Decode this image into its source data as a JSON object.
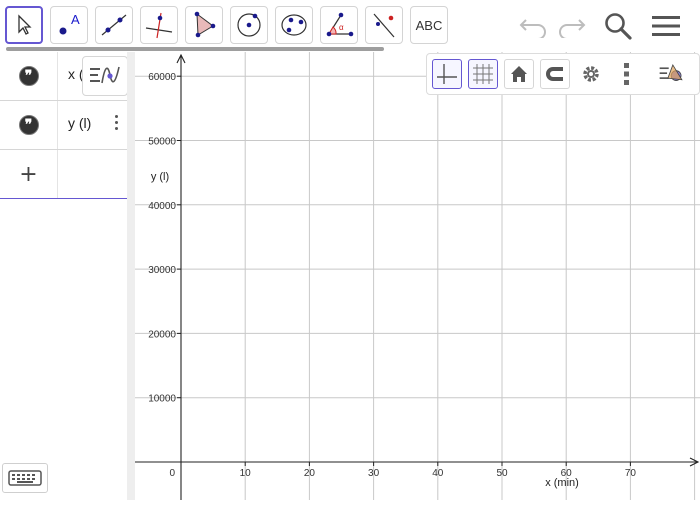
{
  "toolbar": {
    "tools": [
      "move-tool",
      "point-tool",
      "line-tool",
      "perpendicular-line-tool",
      "polygon-tool",
      "circle-center-point-tool",
      "conic-tool",
      "angle-tool",
      "reflect-tool",
      "text-tool"
    ],
    "text_tool_label": "ABC",
    "accent": "#6557d2"
  },
  "algebra": {
    "rows": [
      {
        "label": "x (",
        "icon": "quote-icon"
      },
      {
        "label": "y (l)",
        "icon": "quote-icon"
      }
    ],
    "add_symbol": "+"
  },
  "graphics": {
    "x_axis_label": "x (min)",
    "y_axis_label": "y (l)",
    "origin_label": "0",
    "x_ticks": [
      "10",
      "20",
      "30",
      "40",
      "50",
      "60",
      "70"
    ],
    "y_ticks": [
      "10000",
      "20000",
      "30000",
      "40000",
      "50000",
      "60000"
    ]
  }
}
